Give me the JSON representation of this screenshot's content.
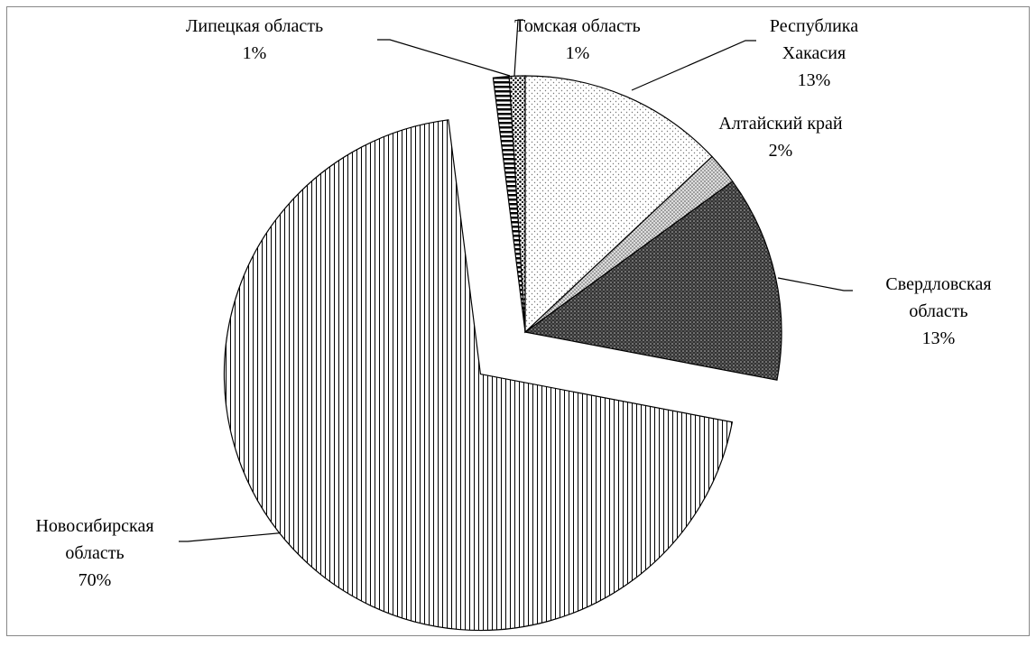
{
  "chart_data": {
    "type": "pie",
    "categories": [
      "Липецкая область",
      "Томская область",
      "Республика Хакасия",
      "Алтайский край",
      "Свердловская область",
      "Новосибирская область"
    ],
    "values": [
      1,
      1,
      13,
      2,
      13,
      70
    ],
    "value_labels": [
      "1%",
      "1%",
      "13%",
      "2%",
      "13%",
      "70%"
    ]
  }
}
